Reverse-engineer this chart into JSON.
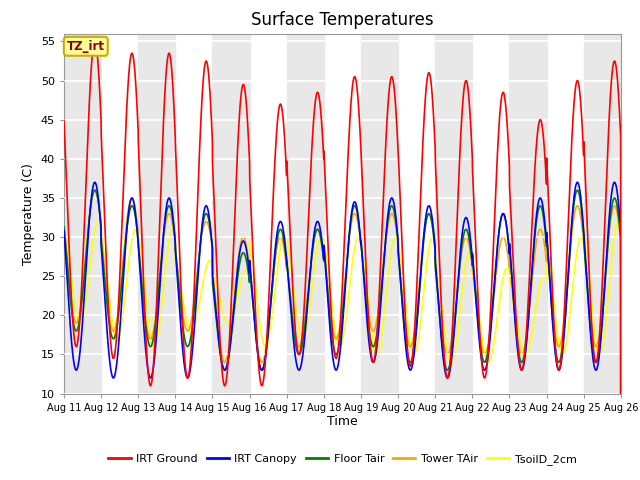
{
  "title": "Surface Temperatures",
  "ylabel": "Temperature (C)",
  "xlabel": "Time",
  "ylim": [
    10,
    56
  ],
  "xlim": [
    0,
    15
  ],
  "x_tick_labels": [
    "Aug 11",
    "Aug 12",
    "Aug 13",
    "Aug 14",
    "Aug 15",
    "Aug 16",
    "Aug 17",
    "Aug 18",
    "Aug 19",
    "Aug 20",
    "Aug 21",
    "Aug 22",
    "Aug 23",
    "Aug 24",
    "Aug 25",
    "Aug 26"
  ],
  "annotation_text": "TZ_irt",
  "annotation_color": "#8B0000",
  "annotation_bg": "#FFFF99",
  "annotation_border": "#CCAA00",
  "legend_entries": [
    "IRT Ground",
    "IRT Canopy",
    "Floor Tair",
    "Tower TAir",
    "TsoilD_2cm"
  ],
  "line_colors": [
    "red",
    "blue",
    "green",
    "orange",
    "yellow"
  ],
  "band_color": "#e8e8e8",
  "title_fontsize": 12,
  "num_days": 15,
  "samples_per_day": 288,
  "irt_ground_peaks": [
    55,
    53.5,
    53.5,
    52.5,
    49.5,
    47.0,
    48.5,
    50.5,
    50.5,
    51.0,
    50.0,
    48.5,
    45.0,
    50.0,
    52.5
  ],
  "irt_ground_mins": [
    16.0,
    14.5,
    11.0,
    12.0,
    11.0,
    11.0,
    15.0,
    14.5,
    14.0,
    13.5,
    12.0,
    12.0,
    13.0,
    13.0,
    14.0
  ],
  "canopy_peaks": [
    37.0,
    35.0,
    35.0,
    34.0,
    29.5,
    32.0,
    32.0,
    34.5,
    35.0,
    34.0,
    32.5,
    33.0,
    35.0,
    37.0,
    37.0
  ],
  "canopy_mins": [
    13.0,
    12.0,
    12.0,
    12.0,
    13.0,
    13.0,
    13.0,
    13.0,
    14.0,
    13.0,
    12.0,
    13.0,
    13.0,
    13.0,
    13.0
  ],
  "floor_peaks": [
    36.0,
    34.0,
    34.0,
    33.0,
    28.0,
    31.0,
    31.0,
    34.0,
    34.0,
    33.0,
    31.0,
    33.0,
    34.0,
    36.0,
    35.0
  ],
  "floor_mins": [
    18.0,
    17.0,
    16.0,
    16.0,
    13.0,
    13.0,
    15.0,
    15.0,
    16.0,
    14.0,
    13.0,
    14.0,
    14.0,
    14.0,
    14.0
  ],
  "tower_peaks": [
    36.0,
    35.0,
    33.0,
    32.0,
    30.0,
    30.0,
    31.0,
    33.0,
    33.0,
    33.0,
    30.0,
    30.0,
    31.0,
    34.0,
    34.0
  ],
  "tower_mins": [
    19.0,
    18.0,
    17.0,
    18.0,
    14.0,
    14.0,
    16.0,
    17.0,
    18.0,
    16.0,
    15.0,
    15.0,
    15.0,
    16.0,
    16.0
  ],
  "soil_peaks": [
    32.0,
    31.0,
    31.0,
    27.0,
    26.0,
    30.0,
    30.0,
    30.0,
    30.0,
    30.0,
    28.0,
    26.0,
    25.0,
    30.0,
    32.0
  ],
  "soil_mins": [
    19.0,
    17.0,
    16.0,
    18.0,
    19.0,
    16.0,
    17.0,
    16.0,
    15.0,
    15.0,
    14.0,
    14.0,
    15.0,
    15.0,
    15.0
  ]
}
